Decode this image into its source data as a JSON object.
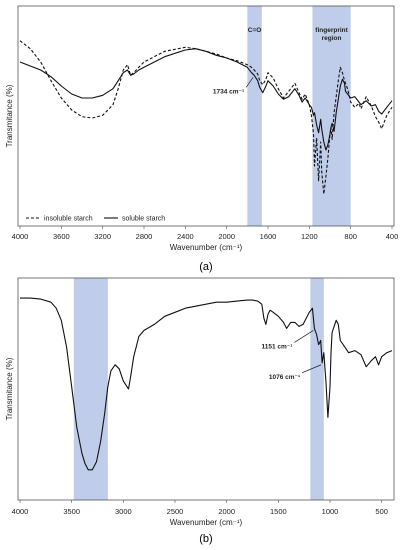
{
  "chart_data": [
    {
      "type": "line",
      "panel_caption": "(a)",
      "xlabel": "Wavenumber (cm⁻¹)",
      "ylabel": "Transmitance (%)",
      "xlim": [
        4000,
        400
      ],
      "x_ticks": [
        "4000",
        "3600",
        "3200",
        "2800",
        "2400",
        "2000",
        "1600",
        "1200",
        "800",
        "400"
      ],
      "grid": false,
      "legend_position": "bottom-left",
      "shaded_regions": [
        {
          "label": "C=O",
          "from": 1800,
          "to": 1660,
          "color": "#b4c4e8"
        },
        {
          "label": "fingerprint region",
          "from": 1170,
          "to": 800,
          "color": "#b4c4e8"
        }
      ],
      "annotations": [
        {
          "text": "1734 cm⁻¹",
          "x": 1734
        }
      ],
      "series": [
        {
          "name": "insoluble starch",
          "style": "dashed",
          "x": [
            4000,
            3900,
            3800,
            3700,
            3600,
            3500,
            3400,
            3300,
            3200,
            3100,
            3050,
            3000,
            2960,
            2930,
            2900,
            2850,
            2800,
            2600,
            2400,
            2300,
            2200,
            2100,
            2000,
            1900,
            1800,
            1760,
            1734,
            1700,
            1680,
            1650,
            1620,
            1600,
            1550,
            1500,
            1450,
            1420,
            1380,
            1340,
            1300,
            1270,
            1240,
            1200,
            1180,
            1160,
            1150,
            1130,
            1110,
            1090,
            1080,
            1060,
            1040,
            1020,
            1000,
            990,
            980,
            960,
            940,
            920,
            900,
            880,
            860,
            850,
            830,
            800,
            760,
            720,
            700,
            650,
            600,
            560,
            530,
            500,
            450,
            400
          ],
          "y": [
            60,
            54,
            44,
            30,
            17,
            8,
            3,
            2,
            4,
            12,
            24,
            38,
            42,
            34,
            36,
            40,
            44,
            52,
            55,
            54,
            52,
            50,
            47,
            45,
            42,
            40,
            38,
            35,
            30,
            27,
            31,
            36,
            32,
            24,
            17,
            20,
            24,
            28,
            21,
            16,
            20,
            12,
            4,
            -10,
            -34,
            -13,
            -45,
            -16,
            -38,
            -55,
            -42,
            -28,
            -10,
            -5,
            -14,
            6,
            18,
            30,
            40,
            36,
            30,
            28,
            24,
            14,
            10,
            13,
            9,
            18,
            11,
            3,
            -1,
            -6,
            4,
            10
          ]
        },
        {
          "name": "soluble starch",
          "style": "solid",
          "x": [
            4000,
            3900,
            3800,
            3700,
            3600,
            3500,
            3400,
            3300,
            3200,
            3100,
            3050,
            3000,
            2960,
            2930,
            2900,
            2850,
            2800,
            2600,
            2400,
            2300,
            2200,
            2100,
            2000,
            1900,
            1800,
            1760,
            1734,
            1700,
            1680,
            1650,
            1620,
            1600,
            1550,
            1500,
            1450,
            1400,
            1380,
            1340,
            1300,
            1270,
            1240,
            1200,
            1180,
            1160,
            1150,
            1130,
            1110,
            1090,
            1080,
            1060,
            1040,
            1020,
            1000,
            990,
            980,
            960,
            940,
            920,
            900,
            880,
            860,
            850,
            830,
            800,
            760,
            720,
            700,
            650,
            600,
            560,
            530,
            500,
            450,
            400
          ],
          "y": [
            44,
            41,
            38,
            33,
            26,
            20,
            17,
            17,
            19,
            24,
            30,
            36,
            38,
            34,
            35,
            38,
            40,
            48,
            53,
            54,
            52,
            49,
            47,
            44,
            40,
            36,
            34,
            30,
            25,
            21,
            26,
            30,
            26,
            20,
            16,
            18,
            20,
            24,
            19,
            14,
            17,
            12,
            10,
            4,
            6,
            -3,
            -9,
            1,
            -6,
            -16,
            -22,
            -18,
            -10,
            -5,
            -2,
            -8,
            6,
            16,
            26,
            31,
            28,
            22,
            20,
            17,
            18,
            14,
            12,
            15,
            11,
            12,
            7,
            5,
            10,
            15
          ]
        }
      ]
    },
    {
      "type": "line",
      "panel_caption": "(b)",
      "xlabel": "Wavenumber (cm⁻¹)",
      "ylabel": "Transmitance (%)",
      "xlim": [
        4000,
        400
      ],
      "x_ticks": [
        "4000",
        "3500",
        "3000",
        "2500",
        "2000",
        "1500",
        "1000",
        "500"
      ],
      "grid": false,
      "shaded_regions": [
        {
          "from": 3480,
          "to": 3150,
          "color": "#b4c4e8"
        },
        {
          "from": 1190,
          "to": 1060,
          "color": "#b4c4e8"
        }
      ],
      "annotations": [
        {
          "text": "1151 cm⁻¹",
          "x": 1151
        },
        {
          "text": "1076 cm⁻¹",
          "x": 1076
        }
      ],
      "series": [
        {
          "name": "",
          "style": "solid",
          "x": [
            4000,
            3900,
            3800,
            3700,
            3650,
            3600,
            3550,
            3500,
            3450,
            3400,
            3370,
            3340,
            3300,
            3260,
            3220,
            3180,
            3150,
            3120,
            3080,
            3040,
            3000,
            2950,
            2930,
            2900,
            2870,
            2850,
            2800,
            2700,
            2600,
            2500,
            2400,
            2300,
            2200,
            2100,
            2000,
            1900,
            1800,
            1750,
            1700,
            1660,
            1640,
            1620,
            1600,
            1580,
            1550,
            1500,
            1450,
            1420,
            1380,
            1340,
            1300,
            1260,
            1240,
            1200,
            1170,
            1151,
            1130,
            1110,
            1090,
            1076,
            1060,
            1040,
            1020,
            1000,
            990,
            980,
            960,
            940,
            920,
            900,
            860,
            820,
            760,
            700,
            650,
            600,
            560,
            530,
            500,
            450,
            400
          ],
          "y": [
            -1,
            -1,
            -1.5,
            -3,
            -6,
            -12,
            -25,
            -45,
            -65,
            -78,
            -83,
            -86,
            -86,
            -82,
            -72,
            -58,
            -45,
            -37,
            -34,
            -36,
            -42,
            -46,
            -40,
            -30,
            -24,
            -20,
            -17,
            -14,
            -10,
            -8,
            -6,
            -5,
            -4,
            -3,
            -3,
            -2.5,
            -2,
            -2,
            -2.5,
            -4,
            -11,
            -14,
            -9,
            -7,
            -8,
            -10,
            -13,
            -16,
            -13,
            -13,
            -15,
            -14,
            -12,
            -8,
            -6,
            -16,
            -19,
            -24,
            -22,
            -33,
            -28,
            -42,
            -60,
            -45,
            -28,
            -18,
            -15,
            -12,
            -14,
            -22,
            -25,
            -28,
            -27,
            -29,
            -35,
            -32,
            -30,
            -34,
            -30,
            -28,
            -27
          ]
        }
      ]
    }
  ]
}
